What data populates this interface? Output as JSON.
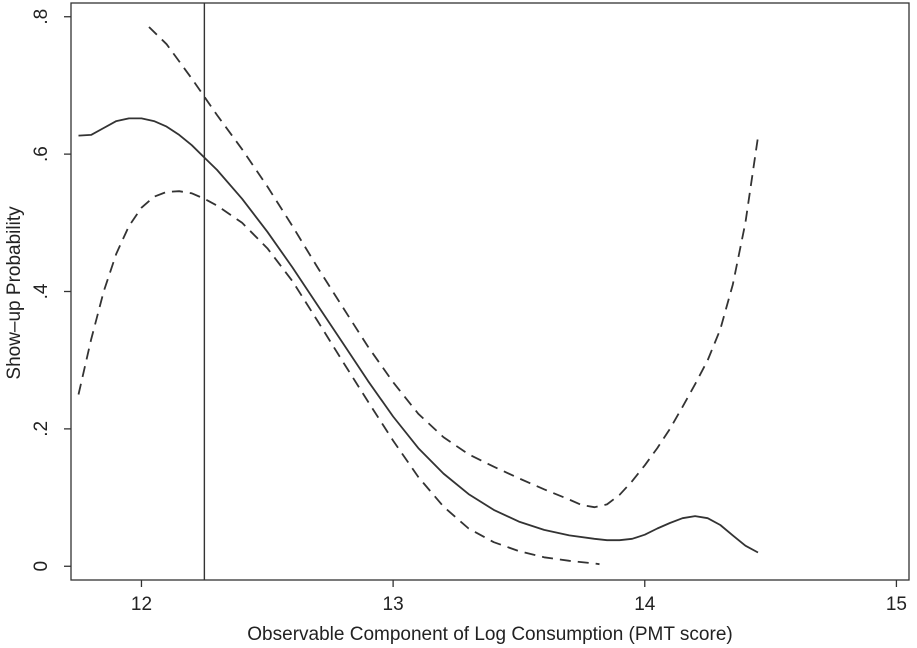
{
  "chart_data": {
    "type": "line",
    "title": "",
    "xlabel": "Observable Component of Log Consumption (PMT score)",
    "ylabel": "Show–up Probability",
    "xlim": [
      11.72,
      15.05
    ],
    "ylim": [
      -0.02,
      0.82
    ],
    "x_ticks": [
      12,
      13,
      14,
      15
    ],
    "x_tick_labels": [
      "12",
      "13",
      "14",
      "15"
    ],
    "y_ticks": [
      0,
      0.2,
      0.4,
      0.6,
      0.8
    ],
    "y_tick_labels": [
      "0",
      ".2",
      ".4",
      ".6",
      ".8"
    ],
    "grid": false,
    "legend": "none",
    "cutoff_line_x": 12.25,
    "series": [
      {
        "style": "solid",
        "x": [
          11.75,
          11.8,
          11.85,
          11.9,
          11.95,
          12.0,
          12.05,
          12.1,
          12.15,
          12.2,
          12.25,
          12.3,
          12.4,
          12.5,
          12.6,
          12.7,
          12.8,
          12.9,
          13.0,
          13.1,
          13.2,
          13.3,
          13.4,
          13.5,
          13.6,
          13.7,
          13.8,
          13.85,
          13.9,
          13.95,
          14.0,
          14.05,
          14.1,
          14.15,
          14.2,
          14.25,
          14.3,
          14.35,
          14.4,
          14.45
        ],
        "y": [
          0.627,
          0.628,
          0.638,
          0.648,
          0.652,
          0.652,
          0.648,
          0.64,
          0.628,
          0.613,
          0.595,
          0.577,
          0.535,
          0.487,
          0.435,
          0.38,
          0.325,
          0.27,
          0.218,
          0.172,
          0.135,
          0.105,
          0.082,
          0.065,
          0.053,
          0.045,
          0.04,
          0.038,
          0.038,
          0.04,
          0.046,
          0.055,
          0.063,
          0.07,
          0.073,
          0.07,
          0.06,
          0.045,
          0.03,
          0.02
        ]
      },
      {
        "style": "dashed",
        "x": [
          12.03,
          12.1,
          12.2,
          12.3,
          12.4,
          12.5,
          12.6,
          12.7,
          12.8,
          12.9,
          13.0,
          13.1,
          13.2,
          13.3,
          13.4,
          13.5,
          13.6,
          13.7,
          13.75,
          13.8,
          13.85,
          13.9,
          13.95,
          14.0,
          14.05,
          14.1,
          14.15,
          14.2,
          14.25,
          14.3,
          14.35,
          14.4,
          14.45
        ],
        "y": [
          0.785,
          0.76,
          0.71,
          0.657,
          0.607,
          0.553,
          0.495,
          0.435,
          0.377,
          0.32,
          0.268,
          0.222,
          0.188,
          0.163,
          0.145,
          0.128,
          0.112,
          0.097,
          0.089,
          0.086,
          0.09,
          0.104,
          0.124,
          0.147,
          0.172,
          0.2,
          0.232,
          0.265,
          0.3,
          0.345,
          0.41,
          0.5,
          0.625
        ]
      },
      {
        "style": "dashed",
        "x": [
          11.75,
          11.8,
          11.85,
          11.9,
          11.95,
          12.0,
          12.05,
          12.1,
          12.15,
          12.2,
          12.25,
          12.3,
          12.4,
          12.5,
          12.6,
          12.7,
          12.8,
          12.9,
          13.0,
          13.1,
          13.2,
          13.3,
          13.4,
          13.5,
          13.6,
          13.7,
          13.8,
          13.82
        ],
        "y": [
          0.25,
          0.33,
          0.4,
          0.455,
          0.495,
          0.522,
          0.538,
          0.545,
          0.546,
          0.543,
          0.535,
          0.525,
          0.5,
          0.463,
          0.415,
          0.357,
          0.298,
          0.24,
          0.183,
          0.13,
          0.087,
          0.055,
          0.035,
          0.022,
          0.013,
          0.008,
          0.004,
          0.003
        ]
      }
    ]
  }
}
